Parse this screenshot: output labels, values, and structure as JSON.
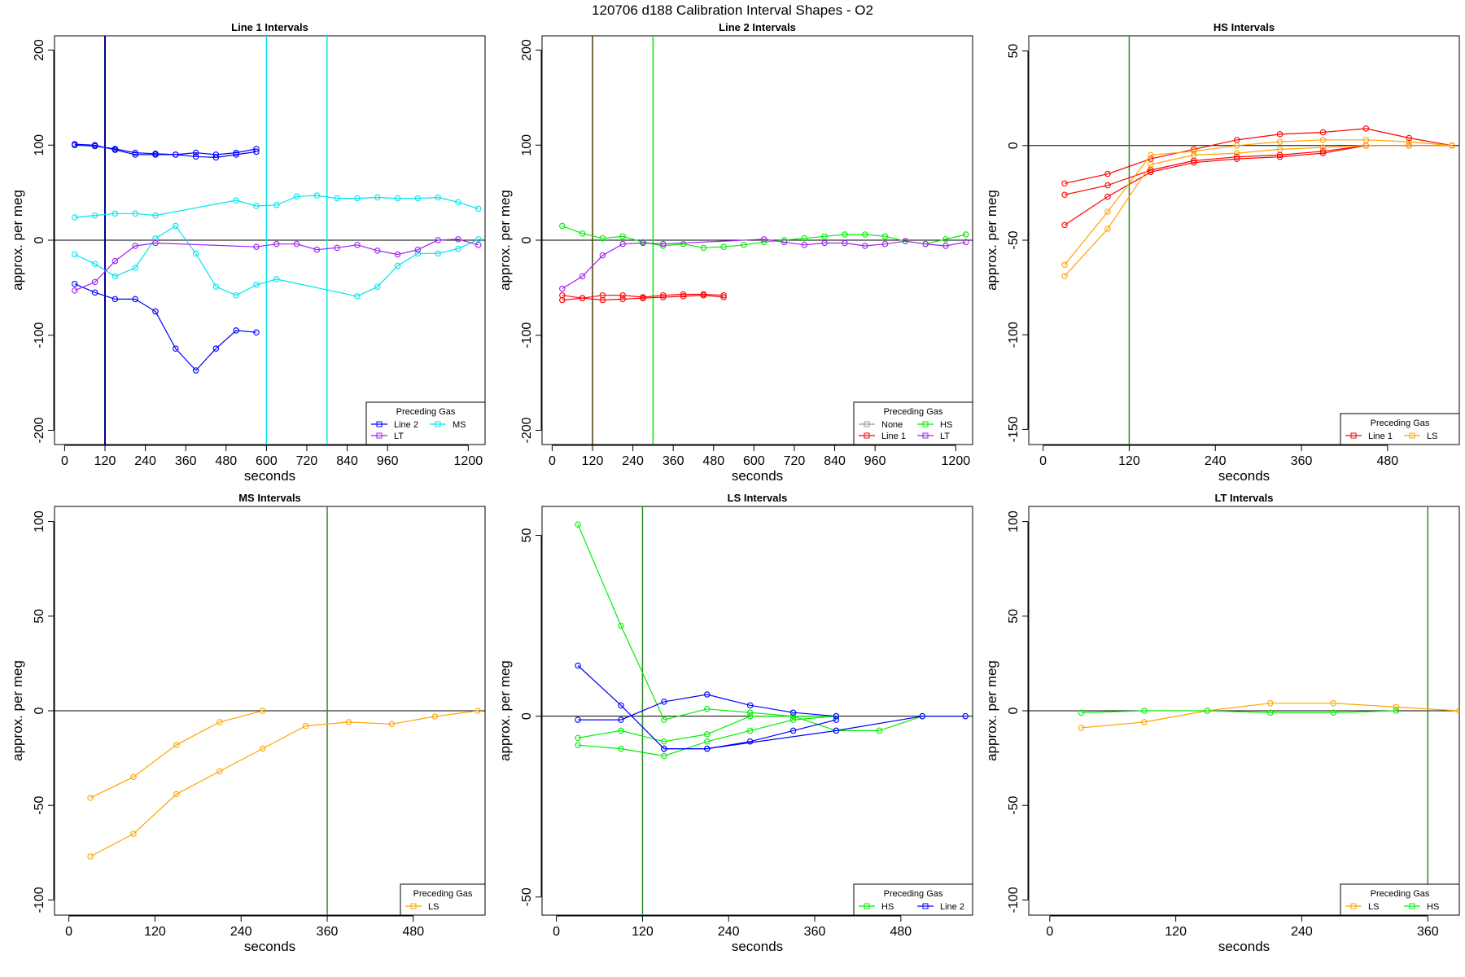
{
  "title": "120706   d188   Calibration Interval Shapes - O2",
  "colors": {
    "line2": "#0000ff",
    "ms": "#00e5ee",
    "lt": "#a020f0",
    "line1": "#ff0000",
    "hs": "#00ee00",
    "none": "#999999",
    "ls": "#ffa500",
    "vline_blue": "#00008b",
    "vline_dark": "#4a3b00",
    "vline_green": "#2e8b2e",
    "zero": "#000000"
  },
  "chart_data": [
    {
      "type": "line",
      "title": "Line 1 Intervals",
      "xlabel": "seconds",
      "ylabel": "approx. per meg",
      "xlim": [
        -30,
        1250
      ],
      "ylim": [
        -215,
        215
      ],
      "xticks": [
        0,
        120,
        240,
        360,
        480,
        600,
        720,
        840,
        960,
        1200
      ],
      "yticks": [
        -200,
        -100,
        0,
        100,
        200
      ],
      "hlines": [
        0
      ],
      "vlines": [
        {
          "x": 120,
          "color": "vline_blue",
          "width": 2
        },
        {
          "x": 600,
          "color": "ms",
          "width": 1.5
        },
        {
          "x": 780,
          "color": "ms",
          "width": 1.5
        }
      ],
      "legend": {
        "title": "Preceding Gas",
        "position": "bottom-right",
        "cols": 2,
        "entries": [
          {
            "label": "Line 2",
            "color": "line2"
          },
          {
            "label": "MS",
            "color": "ms"
          },
          {
            "label": "LT",
            "color": "lt"
          }
        ]
      },
      "series": [
        {
          "name": "Line 2",
          "color": "line2",
          "x": [
            30,
            90,
            150,
            210,
            270,
            330,
            390,
            450,
            510,
            570
          ],
          "y": [
            100,
            99,
            96,
            92,
            91,
            90,
            92,
            90,
            92,
            96
          ]
        },
        {
          "name": "Line 2",
          "color": "line2",
          "x": [
            30,
            90,
            150,
            210,
            270,
            330,
            390,
            450,
            510,
            570
          ],
          "y": [
            101,
            100,
            95,
            90,
            90,
            90,
            88,
            87,
            90,
            93
          ]
        },
        {
          "name": "Line 2",
          "color": "line2",
          "x": [
            30,
            90,
            150,
            210,
            270,
            330,
            390,
            450,
            510,
            570
          ],
          "y": [
            -46,
            -55,
            -62,
            -62,
            -75,
            -114,
            -137,
            -114,
            -95,
            -97
          ]
        },
        {
          "name": "MS",
          "color": "ms",
          "x": [
            30,
            90,
            150,
            210,
            270,
            510,
            570,
            630,
            690,
            750,
            810,
            870,
            930,
            990,
            1050,
            1110,
            1170,
            1230
          ],
          "y": [
            24,
            26,
            28,
            28,
            26,
            42,
            36,
            37,
            46,
            47,
            44,
            44,
            45,
            44,
            44,
            45,
            40,
            33
          ]
        },
        {
          "name": "MS",
          "color": "ms",
          "x": [
            30,
            90,
            150,
            210,
            270,
            330,
            390,
            450,
            510,
            570,
            630,
            870,
            930,
            990,
            1050,
            1110,
            1170,
            1230
          ],
          "y": [
            -15,
            -25,
            -38,
            -29,
            2,
            15,
            -14,
            -49,
            -58,
            -47,
            -41,
            -59,
            -49,
            -27,
            -14,
            -14,
            -9,
            1
          ]
        },
        {
          "name": "LT",
          "color": "lt",
          "x": [
            30,
            90,
            150,
            210,
            270,
            570,
            630,
            690,
            750,
            810,
            870,
            930,
            990,
            1050,
            1110,
            1170,
            1230
          ],
          "y": [
            -53,
            -44,
            -22,
            -6,
            -3,
            -7,
            -4,
            -4,
            -10,
            -8,
            -5,
            -11,
            -15,
            -10,
            0,
            1,
            -5
          ]
        }
      ]
    },
    {
      "type": "line",
      "title": "Line 2 Intervals",
      "xlabel": "seconds",
      "ylabel": "approx. per meg",
      "xlim": [
        -30,
        1250
      ],
      "ylim": [
        -215,
        215
      ],
      "xticks": [
        0,
        120,
        240,
        360,
        480,
        600,
        720,
        840,
        960,
        1200
      ],
      "yticks": [
        -200,
        -100,
        0,
        100,
        200
      ],
      "hlines": [
        0
      ],
      "vlines": [
        {
          "x": 120,
          "color": "vline_dark",
          "width": 1.5
        },
        {
          "x": 300,
          "color": "hs",
          "width": 1.5
        }
      ],
      "legend": {
        "title": "Preceding Gas",
        "position": "bottom-right",
        "cols": 2,
        "entries": [
          {
            "label": "None",
            "color": "none"
          },
          {
            "label": "HS",
            "color": "hs"
          },
          {
            "label": "Line 1",
            "color": "line1"
          },
          {
            "label": "LT",
            "color": "lt"
          }
        ]
      },
      "series": [
        {
          "name": "Line 1",
          "color": "line1",
          "x": [
            30,
            90,
            150,
            210,
            270,
            330,
            390,
            450,
            510
          ],
          "y": [
            -58,
            -61,
            -58,
            -58,
            -60,
            -58,
            -57,
            -57,
            -58
          ]
        },
        {
          "name": "Line 1",
          "color": "line1",
          "x": [
            30,
            90,
            150,
            210,
            270,
            330,
            390,
            450,
            510
          ],
          "y": [
            -63,
            -61,
            -63,
            -62,
            -61,
            -60,
            -59,
            -58,
            -60
          ]
        },
        {
          "name": "HS",
          "color": "hs",
          "x": [
            30,
            90,
            150,
            210,
            270,
            330,
            390,
            450,
            510,
            570,
            630,
            690,
            750,
            810,
            870,
            930,
            990,
            1050,
            1110,
            1170,
            1230
          ],
          "y": [
            15,
            7,
            2,
            4,
            -2,
            -6,
            -4,
            -8,
            -7,
            -5,
            -2,
            0,
            2,
            4,
            6,
            6,
            4,
            -1,
            -4,
            1,
            6
          ]
        },
        {
          "name": "LT",
          "color": "lt",
          "x": [
            30,
            90,
            150,
            210,
            270,
            330,
            630,
            690,
            750,
            810,
            870,
            930,
            990,
            1050,
            1110,
            1170,
            1230
          ],
          "y": [
            -51,
            -38,
            -16,
            -4,
            -3,
            -4,
            1,
            -2,
            -5,
            -3,
            -3,
            -6,
            -4,
            -1,
            -4,
            -6,
            -2
          ]
        }
      ]
    },
    {
      "type": "line",
      "title": "HS Intervals",
      "xlabel": "seconds",
      "ylabel": "approx. per meg",
      "xlim": [
        -20,
        580
      ],
      "ylim": [
        -158,
        58
      ],
      "xticks": [
        0,
        120,
        240,
        360,
        480
      ],
      "yticks": [
        -150,
        -100,
        -50,
        0,
        50
      ],
      "hlines": [
        0
      ],
      "vlines": [
        {
          "x": 120,
          "color": "vline_green",
          "width": 1.5
        }
      ],
      "legend": {
        "title": "Preceding Gas",
        "position": "bottom-right",
        "cols": 2,
        "entries": [
          {
            "label": "Line 1",
            "color": "line1"
          },
          {
            "label": "LS",
            "color": "ls"
          }
        ]
      },
      "series": [
        {
          "name": "Line 1",
          "color": "line1",
          "x": [
            30,
            90,
            150,
            210,
            270,
            330,
            390,
            450,
            510,
            570
          ],
          "y": [
            -20,
            -15,
            -7,
            -2,
            3,
            6,
            7,
            9,
            4,
            0
          ]
        },
        {
          "name": "Line 1",
          "color": "line1",
          "x": [
            30,
            90,
            150,
            210,
            270,
            330,
            390,
            450,
            510,
            570
          ],
          "y": [
            -26,
            -21,
            -13,
            -8,
            -6,
            -5,
            -3,
            0,
            0,
            0
          ]
        },
        {
          "name": "Line 1",
          "color": "line1",
          "x": [
            30,
            90,
            150,
            210,
            270,
            330,
            390,
            450,
            510,
            570
          ],
          "y": [
            -42,
            -27,
            -14,
            -9,
            -7,
            -6,
            -4,
            0,
            0,
            0
          ]
        },
        {
          "name": "LS",
          "color": "ls",
          "x": [
            30,
            90,
            150,
            210,
            270,
            330,
            390,
            450,
            510,
            570
          ],
          "y": [
            -63,
            -35,
            -5,
            -3,
            0,
            2,
            3,
            3,
            2,
            0
          ]
        },
        {
          "name": "LS",
          "color": "ls",
          "x": [
            30,
            90,
            150,
            210,
            270,
            330,
            390,
            450,
            510,
            570
          ],
          "y": [
            -69,
            -44,
            -10,
            -5,
            -4,
            -2,
            -1,
            0,
            0,
            0
          ]
        }
      ]
    },
    {
      "type": "line",
      "title": "MS Intervals",
      "xlabel": "seconds",
      "ylabel": "approx. per meg",
      "xlim": [
        -20,
        580
      ],
      "ylim": [
        -108,
        108
      ],
      "xticks": [
        0,
        120,
        240,
        360,
        480
      ],
      "yticks": [
        -100,
        -50,
        0,
        50,
        100
      ],
      "hlines": [
        0
      ],
      "vlines": [
        {
          "x": 360,
          "color": "vline_green",
          "width": 1.5
        }
      ],
      "legend": {
        "title": "Preceding Gas",
        "position": "bottom-right",
        "cols": 1,
        "entries": [
          {
            "label": "LS",
            "color": "ls"
          }
        ]
      },
      "series": [
        {
          "name": "LS",
          "color": "ls",
          "x": [
            30,
            90,
            150,
            210,
            270
          ],
          "y": [
            -46,
            -35,
            -18,
            -6,
            0
          ]
        },
        {
          "name": "LS",
          "color": "ls",
          "x": [
            30,
            90,
            150,
            210,
            270,
            330,
            390,
            450,
            510,
            570
          ],
          "y": [
            -77,
            -65,
            -44,
            -32,
            -20,
            -8,
            -6,
            -7,
            -3,
            0
          ]
        }
      ]
    },
    {
      "type": "line",
      "title": "LS Intervals",
      "xlabel": "seconds",
      "ylabel": "approx. per meg",
      "xlim": [
        -20,
        580
      ],
      "ylim": [
        -55,
        58
      ],
      "xticks": [
        0,
        120,
        240,
        360,
        480
      ],
      "yticks": [
        -50,
        0,
        50
      ],
      "hlines": [
        0
      ],
      "vlines": [
        {
          "x": 120,
          "color": "vline_green",
          "width": 1.5
        }
      ],
      "legend": {
        "title": "Preceding Gas",
        "position": "bottom-right",
        "cols": 2,
        "entries": [
          {
            "label": "HS",
            "color": "hs"
          },
          {
            "label": "Line 2",
            "color": "line2"
          }
        ]
      },
      "series": [
        {
          "name": "HS",
          "color": "hs",
          "x": [
            30,
            90,
            150,
            210,
            270,
            330,
            390
          ],
          "y": [
            53,
            25,
            -1,
            2,
            1,
            0,
            0
          ]
        },
        {
          "name": "HS",
          "color": "hs",
          "x": [
            30,
            90,
            150,
            210,
            270,
            330,
            390,
            450,
            510
          ],
          "y": [
            -6,
            -4,
            -7,
            -5,
            0,
            0,
            -4,
            -4,
            0
          ]
        },
        {
          "name": "HS",
          "color": "hs",
          "x": [
            30,
            90,
            150,
            210,
            270,
            330,
            390
          ],
          "y": [
            -8,
            -9,
            -11,
            -7,
            -4,
            -1,
            0
          ]
        },
        {
          "name": "Line 2",
          "color": "line2",
          "x": [
            30,
            90,
            150,
            210,
            270,
            330,
            390
          ],
          "y": [
            14,
            3,
            -9,
            -9,
            -7,
            -4,
            -1
          ]
        },
        {
          "name": "Line 2",
          "color": "line2",
          "x": [
            30,
            90,
            150,
            210,
            270,
            330,
            390
          ],
          "y": [
            -1,
            -1,
            4,
            6,
            3,
            1,
            0
          ]
        },
        {
          "name": "Line 2",
          "color": "line2",
          "x": [
            150,
            210,
            390,
            510,
            570
          ],
          "y": [
            -9,
            -9,
            -4,
            0,
            0
          ]
        }
      ]
    },
    {
      "type": "line",
      "title": "LT Intervals",
      "xlabel": "seconds",
      "ylabel": "approx. per meg",
      "xlim": [
        -20,
        390
      ],
      "ylim": [
        -108,
        108
      ],
      "xticks": [
        0,
        120,
        240,
        360
      ],
      "yticks": [
        -100,
        -50,
        0,
        50,
        100
      ],
      "hlines": [
        0
      ],
      "vlines": [
        {
          "x": 360,
          "color": "vline_green",
          "width": 1.5
        }
      ],
      "legend": {
        "title": "Preceding Gas",
        "position": "bottom-right",
        "cols": 2,
        "entries": [
          {
            "label": "LS",
            "color": "ls"
          },
          {
            "label": "HS",
            "color": "hs"
          }
        ]
      },
      "series": [
        {
          "name": "LS",
          "color": "ls",
          "x": [
            30,
            90,
            150,
            210,
            270,
            330,
            390
          ],
          "y": [
            -9,
            -6,
            0,
            4,
            4,
            2,
            0
          ]
        },
        {
          "name": "HS",
          "color": "hs",
          "x": [
            30,
            90,
            150,
            210,
            270,
            330
          ],
          "y": [
            -1,
            0,
            0,
            -1,
            -1,
            0
          ]
        }
      ]
    }
  ]
}
